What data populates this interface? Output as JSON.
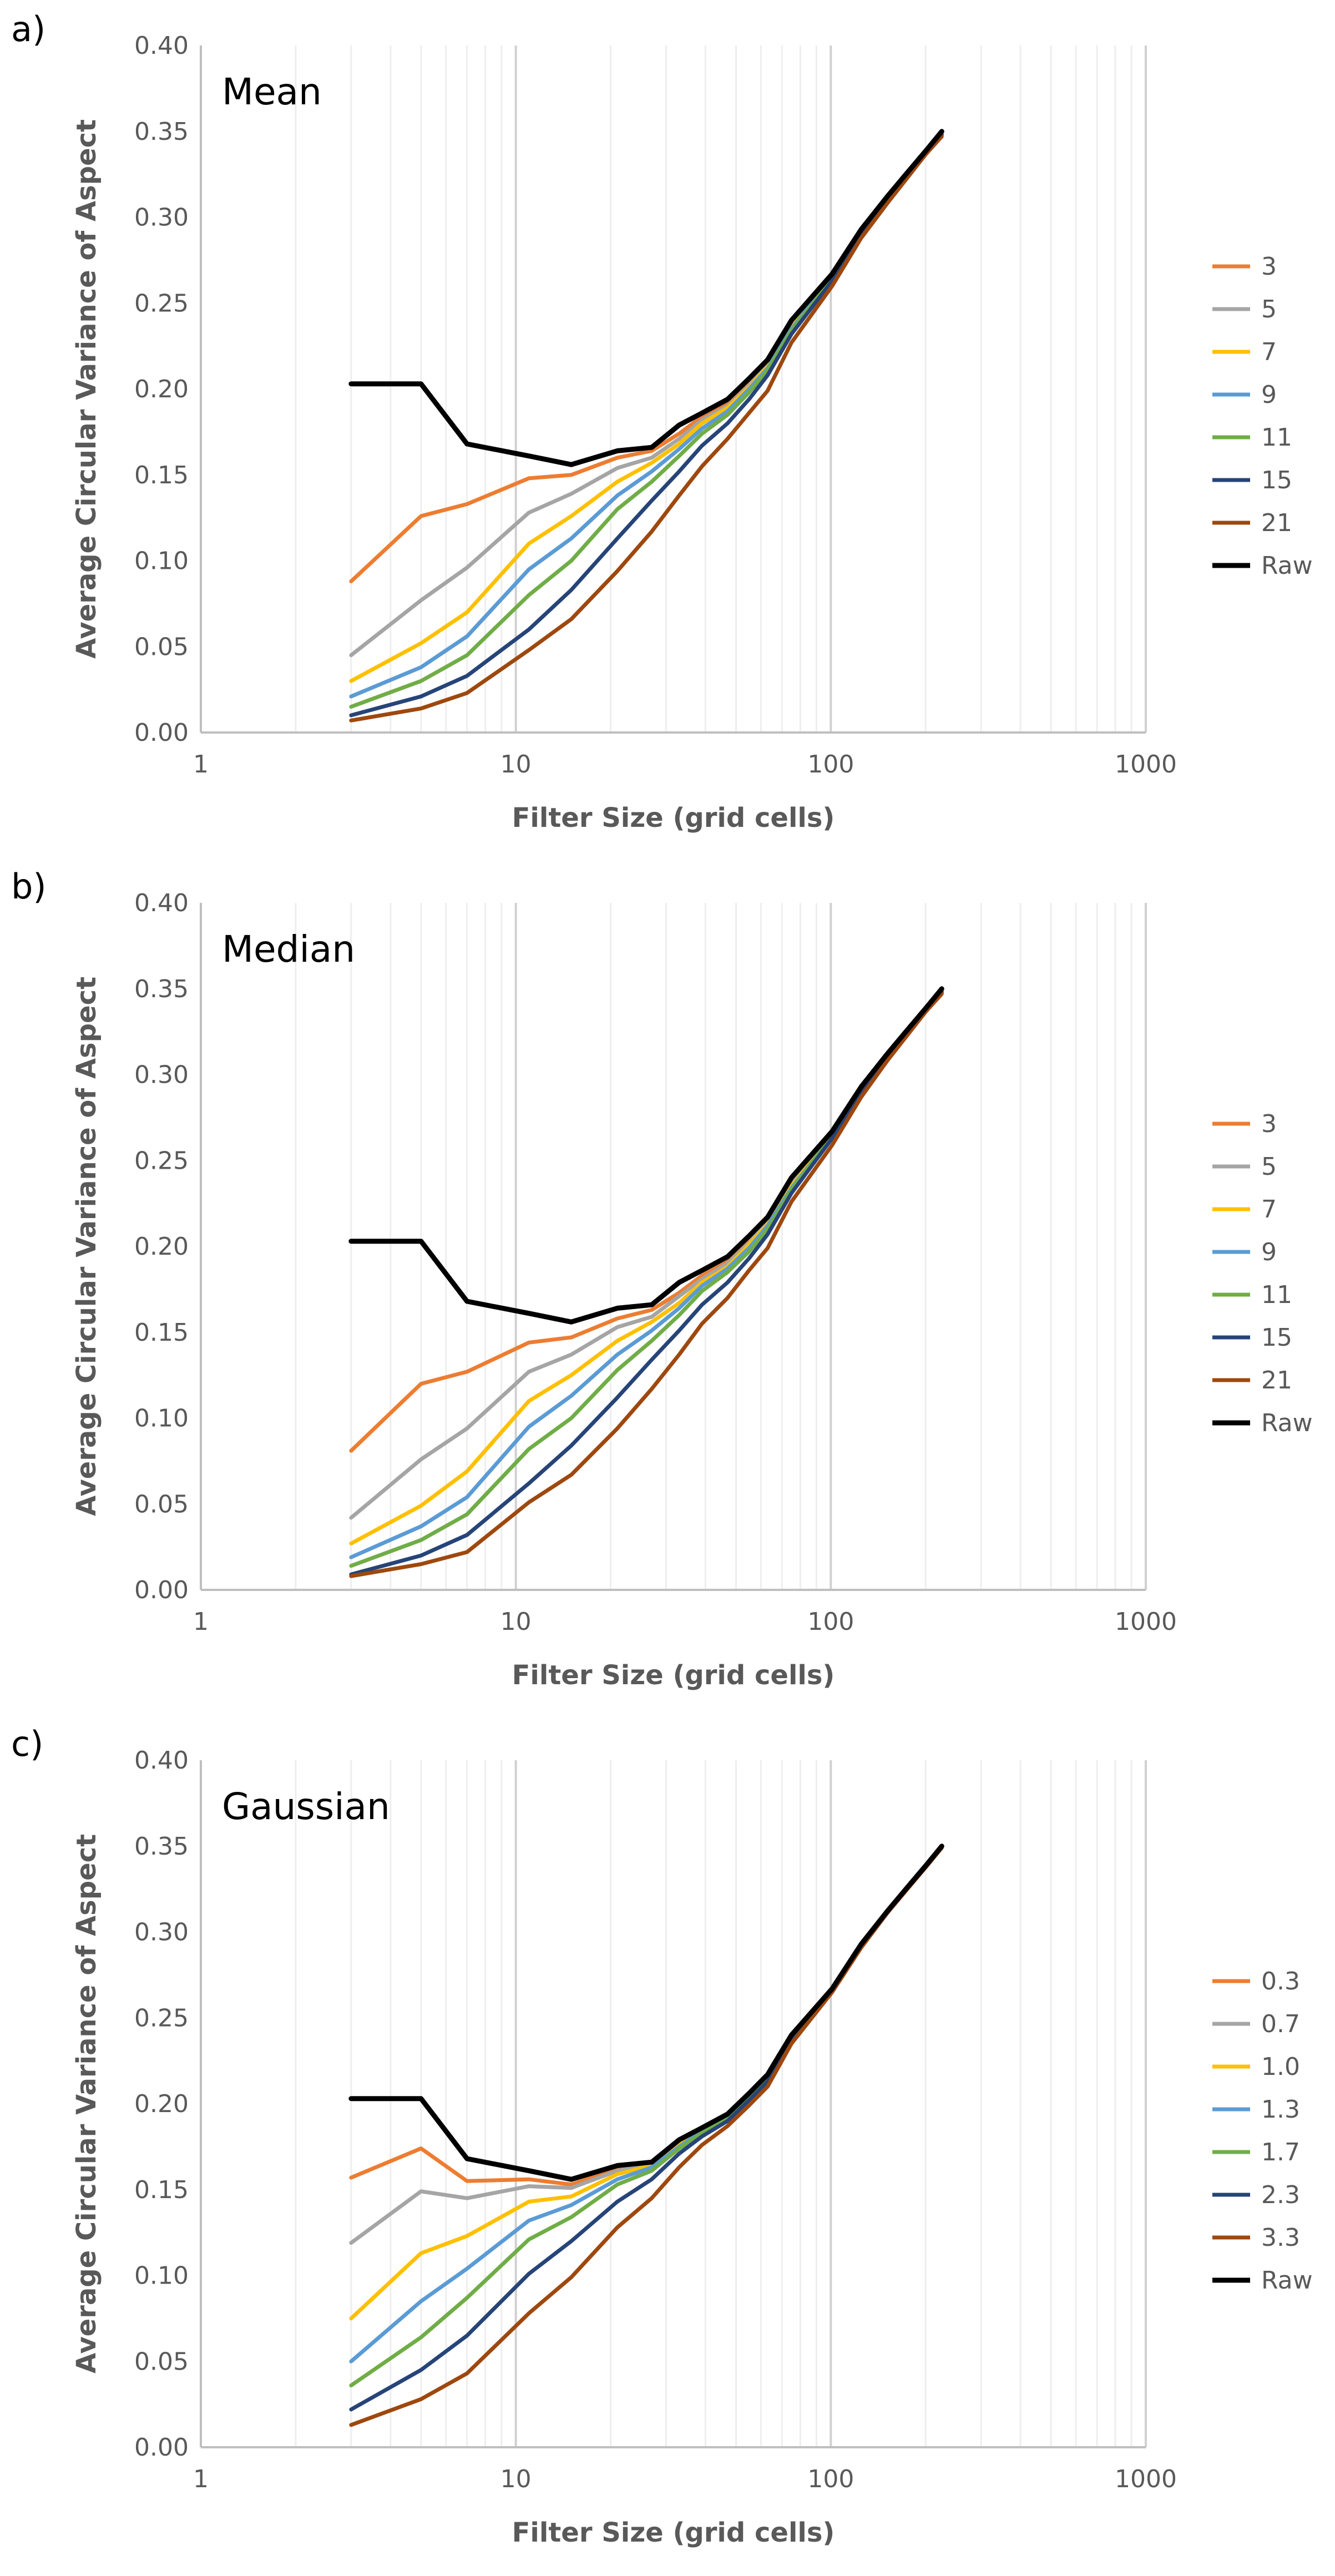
{
  "chart_data": [
    {
      "type": "line",
      "panel_label": "a)",
      "title": "Mean",
      "xlabel": "Filter Size (grid cells)",
      "ylabel": "Average Circular Variance of Aspect",
      "xscale": "log",
      "xlim": [
        1,
        1000
      ],
      "ylim": [
        0,
        0.4
      ],
      "xticks": [
        "1",
        "10",
        "100",
        "1000"
      ],
      "yticks": [
        "0.00",
        "0.05",
        "0.10",
        "0.15",
        "0.20",
        "0.25",
        "0.30",
        "0.35",
        "0.40"
      ],
      "grid": true,
      "legend_position": "right",
      "x": [
        3,
        5,
        7,
        11,
        15,
        21,
        27,
        33,
        39,
        47,
        55,
        63,
        75,
        101,
        125,
        151,
        175,
        201,
        225
      ],
      "series": [
        {
          "name": "3",
          "color": "#ED7D31",
          "values": [
            0.088,
            0.126,
            0.133,
            0.148,
            0.15,
            0.16,
            0.164,
            0.174,
            0.184,
            0.192,
            0.204,
            0.216,
            0.238,
            0.266,
            0.292,
            0.311,
            0.325,
            0.338,
            0.349
          ]
        },
        {
          "name": "5",
          "color": "#A5A5A5",
          "values": [
            0.045,
            0.077,
            0.096,
            0.128,
            0.139,
            0.154,
            0.16,
            0.171,
            0.182,
            0.19,
            0.202,
            0.214,
            0.237,
            0.266,
            0.291,
            0.311,
            0.325,
            0.338,
            0.349
          ]
        },
        {
          "name": "7",
          "color": "#FFC000",
          "values": [
            0.03,
            0.052,
            0.07,
            0.11,
            0.126,
            0.146,
            0.157,
            0.168,
            0.18,
            0.189,
            0.201,
            0.213,
            0.236,
            0.265,
            0.291,
            0.311,
            0.325,
            0.338,
            0.348
          ]
        },
        {
          "name": "9",
          "color": "#5B9BD5",
          "values": [
            0.021,
            0.038,
            0.056,
            0.095,
            0.113,
            0.138,
            0.152,
            0.165,
            0.177,
            0.187,
            0.2,
            0.212,
            0.235,
            0.265,
            0.291,
            0.31,
            0.325,
            0.338,
            0.348
          ]
        },
        {
          "name": "11",
          "color": "#70AD47",
          "values": [
            0.015,
            0.03,
            0.045,
            0.08,
            0.1,
            0.13,
            0.146,
            0.161,
            0.174,
            0.185,
            0.198,
            0.211,
            0.234,
            0.264,
            0.29,
            0.31,
            0.325,
            0.338,
            0.348
          ]
        },
        {
          "name": "15",
          "color": "#264478",
          "values": [
            0.01,
            0.021,
            0.033,
            0.06,
            0.083,
            0.113,
            0.135,
            0.152,
            0.167,
            0.18,
            0.194,
            0.208,
            0.232,
            0.263,
            0.29,
            0.31,
            0.324,
            0.337,
            0.348
          ]
        },
        {
          "name": "21",
          "color": "#9E480E",
          "values": [
            0.007,
            0.014,
            0.023,
            0.048,
            0.066,
            0.094,
            0.117,
            0.138,
            0.155,
            0.171,
            0.186,
            0.199,
            0.227,
            0.26,
            0.288,
            0.308,
            0.323,
            0.337,
            0.347
          ]
        },
        {
          "name": "Raw",
          "color": "#000000",
          "values": [
            0.203,
            0.203,
            0.168,
            0.161,
            0.156,
            0.164,
            0.166,
            0.179,
            0.186,
            0.194,
            0.206,
            0.217,
            0.24,
            0.267,
            0.293,
            0.312,
            0.326,
            0.339,
            0.35
          ]
        }
      ]
    },
    {
      "type": "line",
      "panel_label": "b)",
      "title": "Median",
      "xlabel": "Filter Size (grid cells)",
      "ylabel": "Average Circular Variance of Aspect",
      "xscale": "log",
      "xlim": [
        1,
        1000
      ],
      "ylim": [
        0,
        0.4
      ],
      "xticks": [
        "1",
        "10",
        "100",
        "1000"
      ],
      "yticks": [
        "0.00",
        "0.05",
        "0.10",
        "0.15",
        "0.20",
        "0.25",
        "0.30",
        "0.35",
        "0.40"
      ],
      "grid": true,
      "legend_position": "right",
      "x": [
        3,
        5,
        7,
        11,
        15,
        21,
        27,
        33,
        39,
        47,
        55,
        63,
        75,
        101,
        125,
        151,
        175,
        201,
        225
      ],
      "series": [
        {
          "name": "3",
          "color": "#ED7D31",
          "values": [
            0.081,
            0.12,
            0.127,
            0.144,
            0.147,
            0.158,
            0.163,
            0.173,
            0.183,
            0.191,
            0.203,
            0.215,
            0.237,
            0.266,
            0.291,
            0.311,
            0.325,
            0.338,
            0.349
          ]
        },
        {
          "name": "5",
          "color": "#A5A5A5",
          "values": [
            0.042,
            0.076,
            0.094,
            0.127,
            0.137,
            0.153,
            0.159,
            0.171,
            0.181,
            0.19,
            0.202,
            0.214,
            0.236,
            0.265,
            0.291,
            0.311,
            0.325,
            0.338,
            0.349
          ]
        },
        {
          "name": "7",
          "color": "#FFC000",
          "values": [
            0.027,
            0.049,
            0.069,
            0.11,
            0.125,
            0.145,
            0.156,
            0.167,
            0.179,
            0.188,
            0.201,
            0.213,
            0.235,
            0.265,
            0.291,
            0.31,
            0.325,
            0.338,
            0.348
          ]
        },
        {
          "name": "9",
          "color": "#5B9BD5",
          "values": [
            0.019,
            0.037,
            0.054,
            0.095,
            0.113,
            0.137,
            0.151,
            0.164,
            0.177,
            0.187,
            0.199,
            0.212,
            0.234,
            0.264,
            0.29,
            0.31,
            0.325,
            0.338,
            0.348
          ]
        },
        {
          "name": "11",
          "color": "#70AD47",
          "values": [
            0.014,
            0.029,
            0.044,
            0.082,
            0.1,
            0.128,
            0.145,
            0.16,
            0.174,
            0.185,
            0.197,
            0.21,
            0.233,
            0.264,
            0.29,
            0.31,
            0.324,
            0.338,
            0.348
          ]
        },
        {
          "name": "15",
          "color": "#264478",
          "values": [
            0.009,
            0.02,
            0.032,
            0.062,
            0.084,
            0.112,
            0.134,
            0.151,
            0.166,
            0.179,
            0.193,
            0.207,
            0.231,
            0.263,
            0.289,
            0.309,
            0.324,
            0.337,
            0.348
          ]
        },
        {
          "name": "21",
          "color": "#9E480E",
          "values": [
            0.008,
            0.015,
            0.022,
            0.051,
            0.067,
            0.094,
            0.117,
            0.137,
            0.155,
            0.17,
            0.186,
            0.199,
            0.226,
            0.259,
            0.287,
            0.308,
            0.323,
            0.337,
            0.347
          ]
        },
        {
          "name": "Raw",
          "color": "#000000",
          "values": [
            0.203,
            0.203,
            0.168,
            0.161,
            0.156,
            0.164,
            0.166,
            0.179,
            0.186,
            0.194,
            0.206,
            0.217,
            0.24,
            0.267,
            0.293,
            0.312,
            0.326,
            0.339,
            0.35
          ]
        }
      ]
    },
    {
      "type": "line",
      "panel_label": "c)",
      "title": "Gaussian",
      "xlabel": "Filter Size (grid cells)",
      "ylabel": "Average Circular Variance of Aspect",
      "xscale": "log",
      "xlim": [
        1,
        1000
      ],
      "ylim": [
        0,
        0.4
      ],
      "xticks": [
        "1",
        "10",
        "100",
        "1000"
      ],
      "yticks": [
        "0.00",
        "0.05",
        "0.10",
        "0.15",
        "0.20",
        "0.25",
        "0.30",
        "0.35",
        "0.40"
      ],
      "grid": true,
      "legend_position": "right",
      "x": [
        3,
        5,
        7,
        11,
        15,
        21,
        27,
        33,
        39,
        47,
        55,
        63,
        75,
        101,
        125,
        151,
        175,
        201,
        225
      ],
      "series": [
        {
          "name": "0.3",
          "color": "#ED7D31",
          "values": [
            0.157,
            0.174,
            0.155,
            0.156,
            0.153,
            0.162,
            0.165,
            0.178,
            0.185,
            0.193,
            0.205,
            0.216,
            0.239,
            0.267,
            0.292,
            0.312,
            0.326,
            0.339,
            0.35
          ]
        },
        {
          "name": "0.7",
          "color": "#A5A5A5",
          "values": [
            0.119,
            0.149,
            0.145,
            0.152,
            0.151,
            0.161,
            0.165,
            0.177,
            0.185,
            0.193,
            0.205,
            0.216,
            0.239,
            0.267,
            0.292,
            0.312,
            0.326,
            0.339,
            0.35
          ]
        },
        {
          "name": "1.0",
          "color": "#FFC000",
          "values": [
            0.075,
            0.113,
            0.123,
            0.143,
            0.146,
            0.159,
            0.164,
            0.176,
            0.184,
            0.192,
            0.204,
            0.215,
            0.239,
            0.266,
            0.292,
            0.312,
            0.326,
            0.339,
            0.35
          ]
        },
        {
          "name": "1.3",
          "color": "#5B9BD5",
          "values": [
            0.05,
            0.085,
            0.104,
            0.132,
            0.141,
            0.156,
            0.163,
            0.175,
            0.184,
            0.192,
            0.204,
            0.215,
            0.238,
            0.266,
            0.292,
            0.312,
            0.326,
            0.339,
            0.35
          ]
        },
        {
          "name": "1.7",
          "color": "#70AD47",
          "values": [
            0.036,
            0.064,
            0.087,
            0.121,
            0.134,
            0.153,
            0.161,
            0.174,
            0.183,
            0.191,
            0.203,
            0.214,
            0.238,
            0.266,
            0.292,
            0.312,
            0.326,
            0.339,
            0.35
          ]
        },
        {
          "name": "2.3",
          "color": "#264478",
          "values": [
            0.022,
            0.045,
            0.065,
            0.101,
            0.12,
            0.143,
            0.156,
            0.171,
            0.181,
            0.19,
            0.202,
            0.213,
            0.237,
            0.266,
            0.292,
            0.311,
            0.326,
            0.339,
            0.35
          ]
        },
        {
          "name": "3.3",
          "color": "#9E480E",
          "values": [
            0.013,
            0.028,
            0.043,
            0.078,
            0.099,
            0.128,
            0.145,
            0.163,
            0.176,
            0.187,
            0.199,
            0.21,
            0.235,
            0.265,
            0.291,
            0.311,
            0.325,
            0.338,
            0.349
          ]
        },
        {
          "name": "Raw",
          "color": "#000000",
          "values": [
            0.203,
            0.203,
            0.168,
            0.161,
            0.156,
            0.164,
            0.166,
            0.179,
            0.186,
            0.194,
            0.206,
            0.217,
            0.24,
            0.267,
            0.293,
            0.312,
            0.326,
            0.339,
            0.35
          ]
        }
      ]
    }
  ]
}
